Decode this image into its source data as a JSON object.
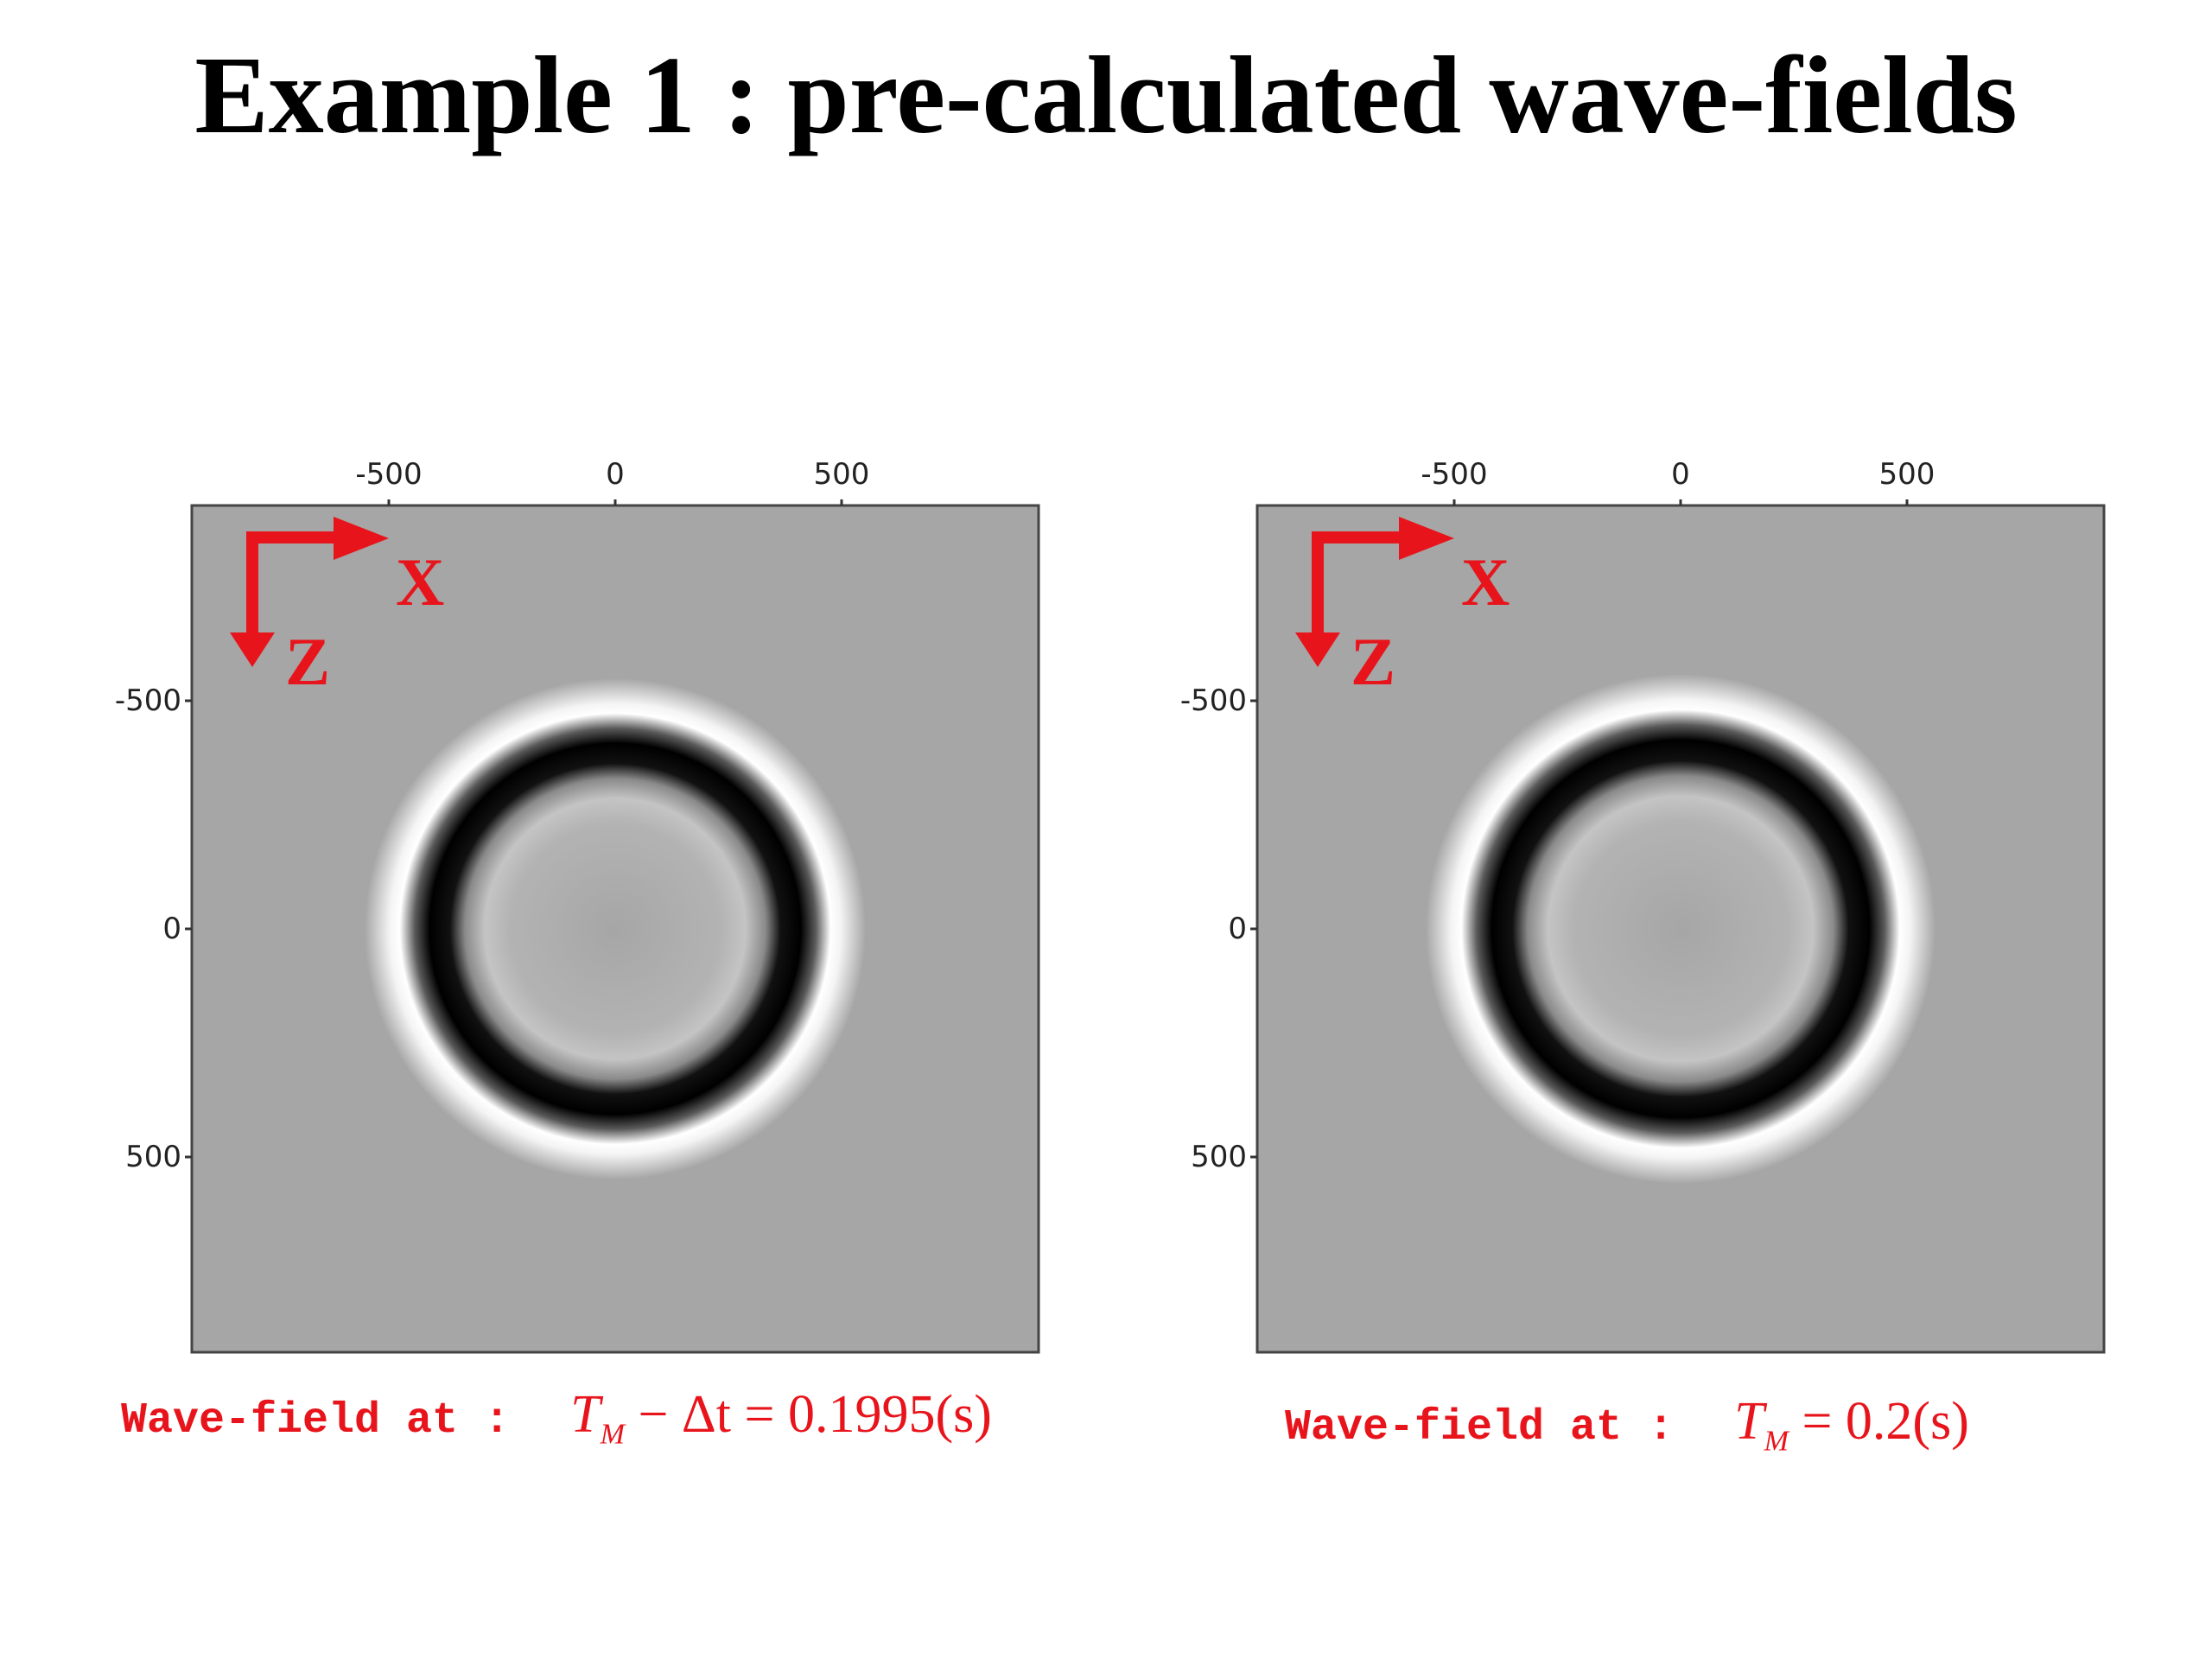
{
  "title": "Example 1 : pre-calculated wave-fields",
  "colors": {
    "arrow": "#e8141b",
    "background_field": "#a6a6a6",
    "caption": "#e8141b"
  },
  "panels": [
    {
      "x_ticks": [
        "-500",
        "0",
        "500"
      ],
      "z_ticks": [
        "-500",
        "0",
        "500"
      ],
      "axis_x_label": "X",
      "axis_z_label": "Z",
      "caption_prefix": "Wave-field at :",
      "caption_T": "T",
      "caption_sub": "M",
      "caption_rest": " − Δt = 0.1995(s)"
    },
    {
      "x_ticks": [
        "-500",
        "0",
        "500"
      ],
      "z_ticks": [
        "-500",
        "0",
        "500"
      ],
      "axis_x_label": "X",
      "axis_z_label": "Z",
      "caption_prefix": "Wave-field at :",
      "caption_T": "T",
      "caption_sub": "M",
      "caption_rest": " = 0.2(s)"
    }
  ]
}
